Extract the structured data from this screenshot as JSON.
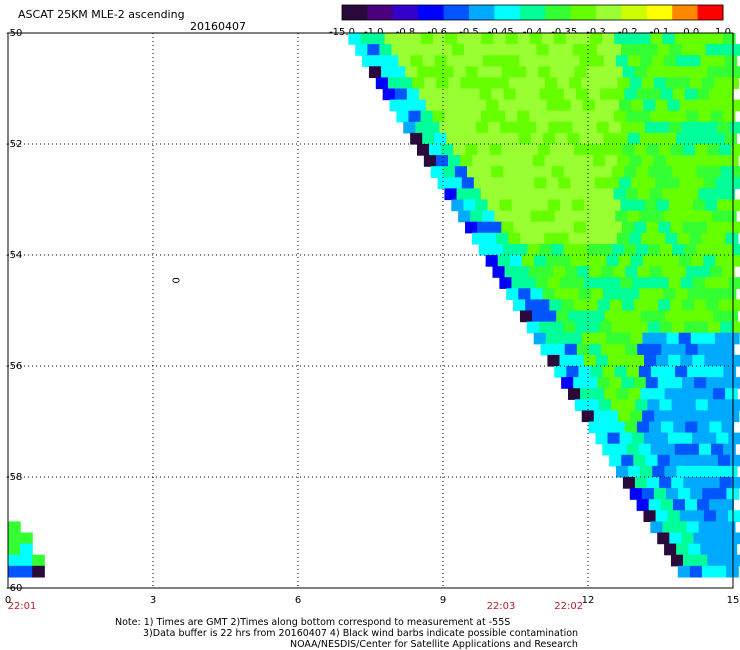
{
  "header": {
    "title": "ASCAT 25KM MLE-2 ascending",
    "date": "20160407"
  },
  "colorbar": {
    "labels": [
      "-15.0",
      "-1.0",
      "-0.8",
      "-0.6",
      "-0.5",
      "-0.45",
      "-0.4",
      "-0.35",
      "-0.3",
      "-0.2",
      "-0.1",
      "0.0",
      "1.0"
    ],
    "colors": [
      "#2a0a3c",
      "#4b0080",
      "#3300cc",
      "#0000ff",
      "#0055ff",
      "#00aaff",
      "#00ffff",
      "#00ff99",
      "#33ff33",
      "#66ff00",
      "#99ff33",
      "#ccff00",
      "#ffff00",
      "#ff8800",
      "#ff0000"
    ]
  },
  "chart_data": {
    "type": "heatmap",
    "title": "ASCAT 25KM MLE-2 ascending",
    "xlim": [
      0,
      15
    ],
    "ylim": [
      -60,
      -50
    ],
    "x_ticks": [
      0,
      3,
      6,
      9,
      12,
      15
    ],
    "x_tick_labels": [
      "0",
      "3",
      "6",
      "9",
      "12",
      "15"
    ],
    "y_ticks": [
      -50,
      -52,
      -54,
      -56,
      -58,
      -60
    ],
    "y_tick_labels": [
      "-50",
      "-52",
      "-54",
      "-56",
      "-58",
      "-60"
    ],
    "grid": true,
    "time_labels": [
      {
        "x": 0,
        "text": "22:01"
      },
      {
        "x": 10.2,
        "text": "22:03"
      },
      {
        "x": 11.6,
        "text": "22:02"
      }
    ],
    "annotation": {
      "x": 3.4,
      "y": -54.4,
      "text": "0"
    }
  },
  "footer": {
    "line1": "Note: 1) Times are GMT 2)Times along bottom correspond to measurement at -55S",
    "line2": "3)Data buffer is 22 hrs from 20160407 4) Black wind barbs indicate possible contamination",
    "line3": "NOAA/NESDIS/Center for Satellite Applications and Research"
  }
}
